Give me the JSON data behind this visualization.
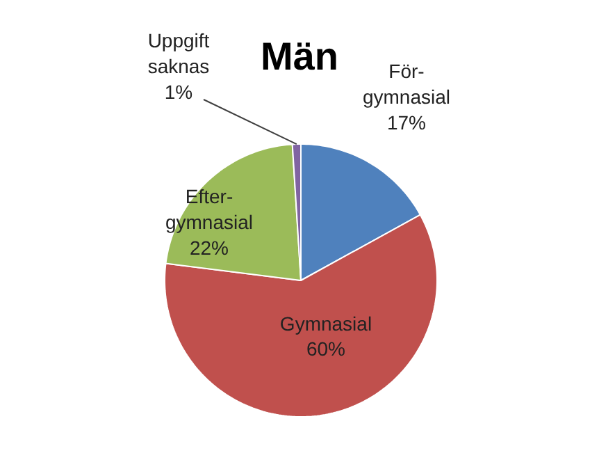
{
  "chart_data": {
    "type": "pie",
    "title": "Män",
    "categories": [
      "För-gymnasial",
      "Gymnasial",
      "Efter-gymnasial",
      "Uppgift saknas"
    ],
    "values": [
      17,
      60,
      22,
      1
    ],
    "value_labels": [
      "17%",
      "60%",
      "22%",
      "1%"
    ],
    "colors": [
      "#4f81bd",
      "#c0504d",
      "#9bbb59",
      "#8064a2"
    ]
  }
}
